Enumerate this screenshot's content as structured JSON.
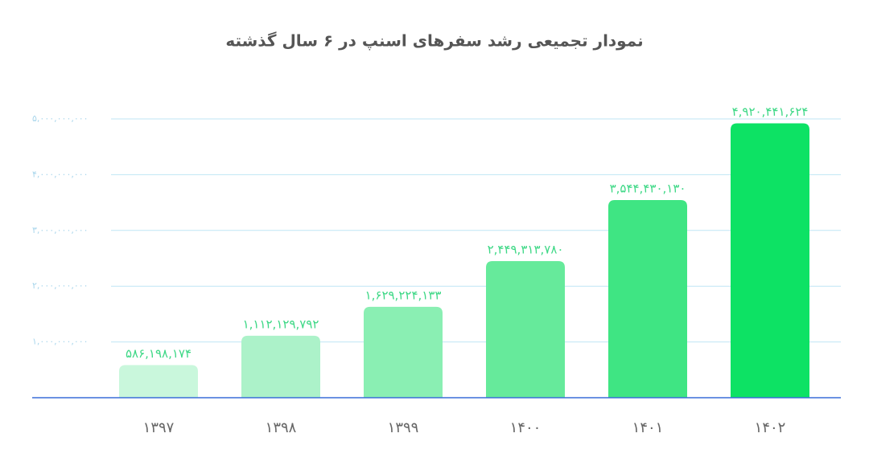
{
  "chart_data": {
    "type": "bar",
    "title": "نمودار تجمیعی رشد سفرهای اسنپ در ۶ سال گذشته",
    "categories": [
      "۱۳۹۷",
      "۱۳۹۸",
      "۱۳۹۹",
      "۱۴۰۰",
      "۱۴۰۱",
      "۱۴۰۲"
    ],
    "values": [
      586198174,
      1112129792,
      1629224133,
      2449313780,
      3544430130,
      4920441624
    ],
    "value_labels": [
      "۵۸۶,۱۹۸,۱۷۴",
      "۱,۱۱۲,۱۲۹,۷۹۲",
      "۱,۶۲۹,۲۲۴,۱۳۳",
      "۲,۴۴۹,۳۱۳,۷۸۰",
      "۳,۵۴۴,۴۳۰,۱۳۰",
      "۴,۹۲۰,۴۴۱,۶۲۴"
    ],
    "colors": [
      "#c9f7dc",
      "#acf2c9",
      "#8aefb3",
      "#66ea9b",
      "#3fe583",
      "#0de264"
    ],
    "ylim": [
      0,
      5000000000
    ],
    "yticks": [
      {
        "value": 1000000000,
        "label": "۱,۰۰۰,۰۰۰,۰۰۰"
      },
      {
        "value": 2000000000,
        "label": "۲,۰۰۰,۰۰۰,۰۰۰"
      },
      {
        "value": 3000000000,
        "label": "۳,۰۰۰,۰۰۰,۰۰۰"
      },
      {
        "value": 4000000000,
        "label": "۴,۰۰۰,۰۰۰,۰۰۰"
      },
      {
        "value": 5000000000,
        "label": "۵,۰۰۰,۰۰۰,۰۰۰"
      }
    ],
    "grid": true
  }
}
